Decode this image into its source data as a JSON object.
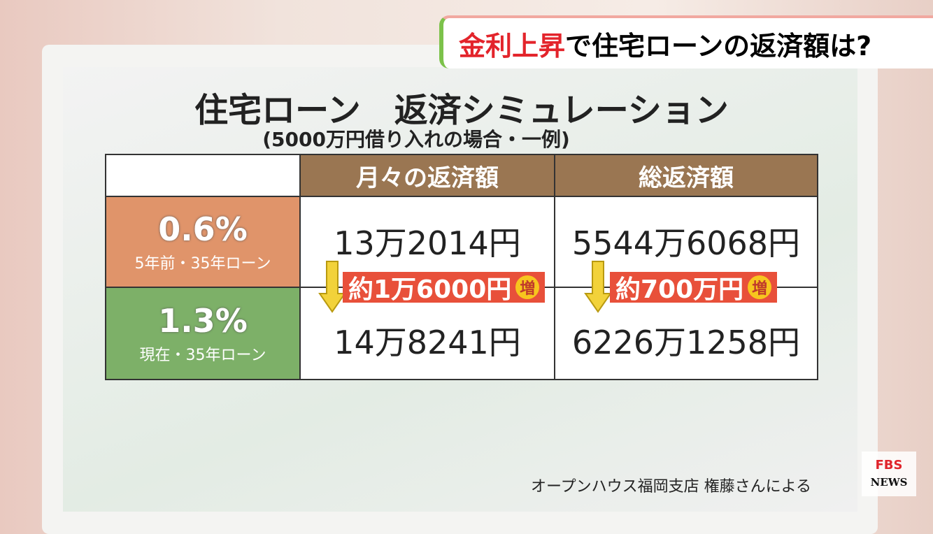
{
  "banner": {
    "highlight": "金利上昇",
    "rest": "で住宅ローンの返済額は?"
  },
  "title": "住宅ローン　返済シミュレーション",
  "subtitle": "(5000万円借り入れの場合・一例)",
  "table": {
    "headers": [
      "月々の返済額",
      "総返済額"
    ],
    "rows": [
      {
        "rate": "0.6%",
        "note": "5年前・35年ローン",
        "monthly": "13万2014円",
        "total": "5544万6068円"
      },
      {
        "rate": "1.3%",
        "note": "現在・35年ローン",
        "monthly": "14万8241円",
        "total": "6226万1258円"
      }
    ],
    "differences": {
      "monthly": "約1万6000円",
      "total": "約700万円",
      "badge": "増"
    }
  },
  "source": "オープンハウス福岡支店 権藤さんによる",
  "logo": {
    "top": "FBS",
    "bottom": "NEWS"
  }
}
